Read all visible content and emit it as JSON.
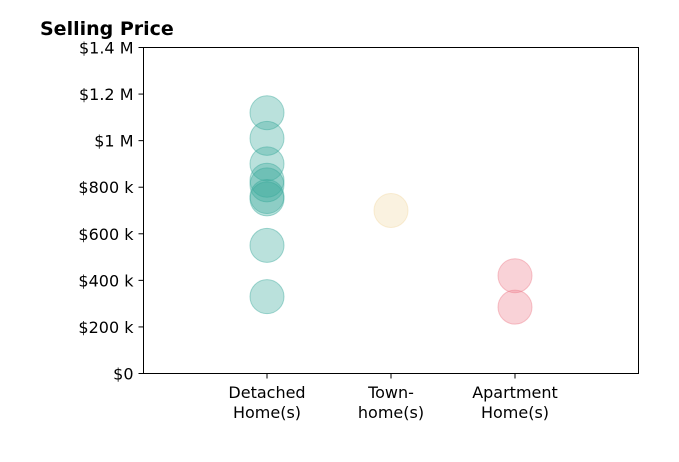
{
  "chart_data": {
    "type": "scatter",
    "title": "Selling Price",
    "xlabel": "",
    "ylabel": "",
    "categories": [
      [
        "Detached",
        "Home(s)"
      ],
      [
        "Town-",
        "home(s)"
      ],
      [
        "Apartment",
        "Home(s)"
      ]
    ],
    "ylim": [
      0,
      1400000
    ],
    "yticks": [
      {
        "value": 0,
        "label": "$0"
      },
      {
        "value": 200000,
        "label": "$200 k"
      },
      {
        "value": 400000,
        "label": "$400 k"
      },
      {
        "value": 600000,
        "label": "$600 k"
      },
      {
        "value": 800000,
        "label": "$800 k"
      },
      {
        "value": 1000000,
        "label": "$1 M"
      },
      {
        "value": 1200000,
        "label": "$1.2 M"
      },
      {
        "value": 1400000,
        "label": "$1.4 M"
      }
    ],
    "series": [
      {
        "category": 0,
        "color": "#3aa99b",
        "values": [
          1120000,
          1010000,
          900000,
          830000,
          810000,
          760000,
          750000,
          550000,
          330000
        ]
      },
      {
        "category": 1,
        "color": "#f1d9a6",
        "values": [
          700000
        ]
      },
      {
        "category": 2,
        "color": "#ee7f8b",
        "values": [
          420000,
          285000
        ]
      }
    ],
    "grid": false,
    "legend": "none"
  }
}
